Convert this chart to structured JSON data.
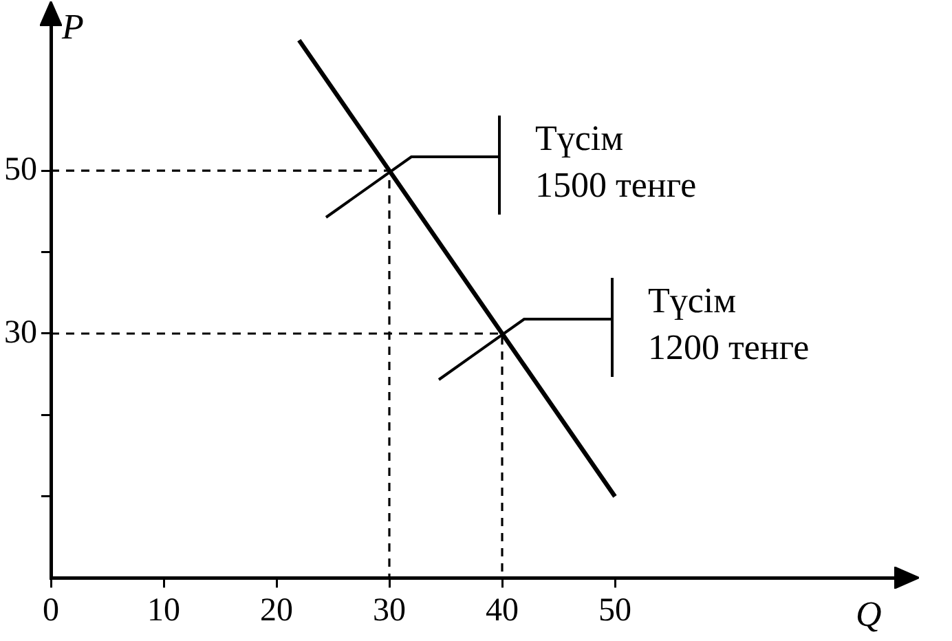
{
  "chart_data": {
    "type": "line",
    "xlabel": "Q",
    "ylabel": "P",
    "xlim": [
      0,
      75
    ],
    "ylim": [
      0,
      68
    ],
    "xticks": [
      0,
      10,
      20,
      30,
      40,
      50
    ],
    "yticks": [
      {
        "value": 10,
        "label": null
      },
      {
        "value": 20,
        "label": null
      },
      30,
      {
        "value": 40,
        "label": null
      },
      50
    ],
    "series": [
      {
        "color": "#000000",
        "x": [
          22,
          30,
          40,
          50
        ],
        "values": [
          66,
          50,
          30,
          10
        ],
        "line_style": "solid"
      },
      {
        "color": "#000000",
        "x": [
          0,
          30,
          30
        ],
        "values": [
          50,
          50,
          0
        ],
        "line_style": "dashed"
      },
      {
        "color": "#000000",
        "x": [
          0,
          40,
          40
        ],
        "values": [
          30,
          30,
          0
        ],
        "line_style": "dashed"
      }
    ],
    "annotations": [
      "Түсім\n1500 тенге",
      "Түсім\n1200 тенге"
    ],
    "grid": false,
    "legend": false,
    "marker": "none"
  }
}
